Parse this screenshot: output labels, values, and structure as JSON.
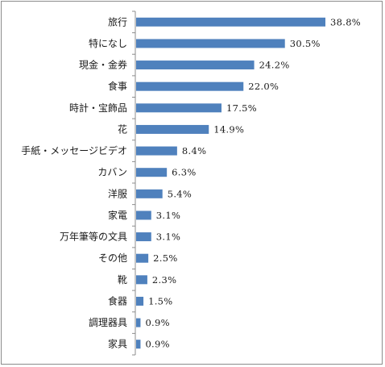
{
  "chart_data": {
    "type": "bar",
    "orientation": "horizontal",
    "categories": [
      "旅行",
      "特になし",
      "現金・金券",
      "食事",
      "時計・宝飾品",
      "花",
      "手紙・メッセージビデオ",
      "カバン",
      "洋服",
      "家電",
      "万年筆等の文具",
      "その他",
      "靴",
      "食器",
      "調理器具",
      "家具"
    ],
    "values": [
      38.8,
      30.5,
      24.2,
      22.0,
      17.5,
      14.9,
      8.4,
      6.3,
      5.4,
      3.1,
      3.1,
      2.5,
      2.3,
      1.5,
      0.9,
      0.9
    ],
    "value_labels": [
      "38.8%",
      "30.5%",
      "24.2%",
      "22.0%",
      "17.5%",
      "14.9%",
      "8.4%",
      "6.3%",
      "5.4%",
      "3.1%",
      "3.1%",
      "2.5%",
      "2.3%",
      "1.5%",
      "0.9%",
      "0.9%"
    ],
    "title": "",
    "xlabel": "",
    "ylabel": "",
    "xlim": [
      0,
      45
    ],
    "grid": false,
    "legend": false,
    "bar_color": "#4f81bd",
    "axis_color": "#8c8c8c"
  }
}
